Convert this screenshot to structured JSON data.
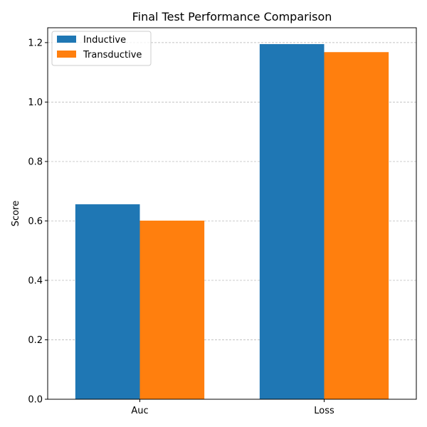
{
  "chart_data": {
    "type": "bar",
    "title": "Final Test Performance Comparison",
    "xlabel": "",
    "ylabel": "Score",
    "categories": [
      "Auc",
      "Loss"
    ],
    "series": [
      {
        "name": "Inductive",
        "values": [
          0.656,
          1.195
        ]
      },
      {
        "name": "Transductive",
        "values": [
          0.601,
          1.168
        ]
      }
    ],
    "ylim": [
      0,
      1.25
    ],
    "yticks": [
      0.0,
      0.2,
      0.4,
      0.6,
      0.8,
      1.0,
      1.2
    ],
    "ytick_labels": [
      "0.0",
      "0.2",
      "0.4",
      "0.6",
      "0.8",
      "1.0",
      "1.2"
    ],
    "grid": {
      "y": true,
      "x": false,
      "style": "dashed"
    },
    "legend": {
      "position": "top-left"
    },
    "colors": {
      "Inductive": "#1f77b4",
      "Transductive": "#ff7f0e"
    }
  }
}
